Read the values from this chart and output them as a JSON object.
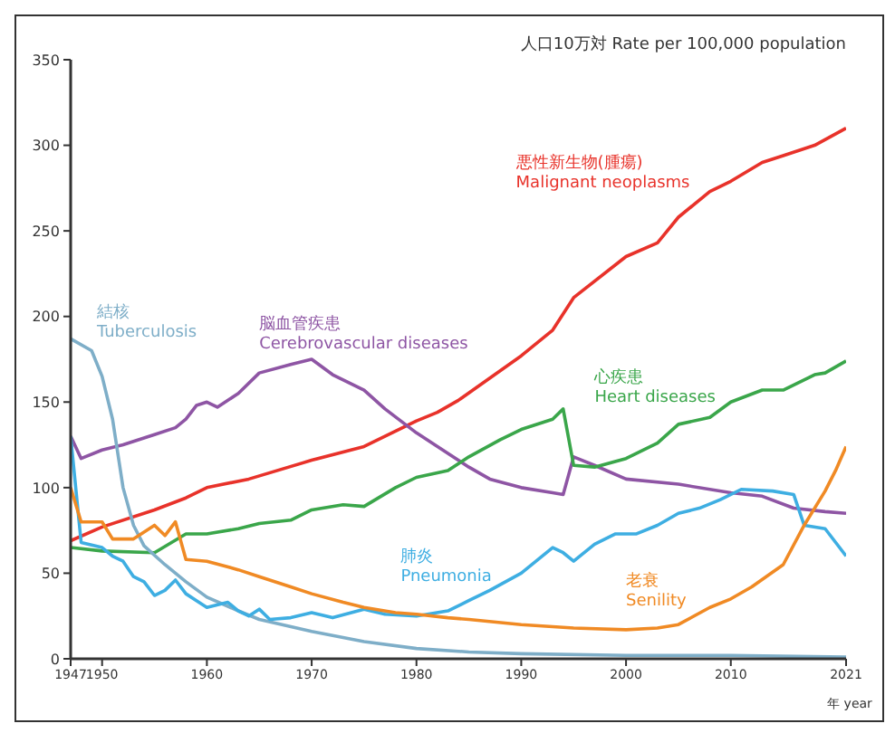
{
  "chart_data": {
    "type": "line",
    "ylabel": "人口10万対  Rate per 100,000 population",
    "xlabel": "年 year",
    "xlim": [
      1947,
      2021
    ],
    "xticks": [
      1947,
      1950,
      1960,
      1970,
      1980,
      1990,
      2000,
      2010,
      2021
    ],
    "ylim": [
      0,
      350
    ],
    "yticks": [
      0,
      50,
      100,
      150,
      200,
      250,
      300,
      350
    ],
    "grid": false,
    "legend": false,
    "marker": "none",
    "line_style": "solid",
    "series": [
      {
        "name": "悪性新生物(腫瘍)\nMalignant neoplasms",
        "color": "#e8322a",
        "x": [
          1947,
          1950,
          1955,
          1958,
          1960,
          1964,
          1970,
          1975,
          1980,
          1982,
          1984,
          1990,
          1993,
          1995,
          2000,
          2003,
          2005,
          2008,
          2010,
          2013,
          2015,
          2018,
          2021
        ],
        "values": [
          69,
          77,
          87,
          94,
          100,
          105,
          116,
          124,
          139,
          144,
          151,
          177,
          192,
          211,
          235,
          243,
          258,
          273,
          279,
          290,
          294,
          300,
          310
        ]
      },
      {
        "name": "脳血管疾患\nCerebrovascular diseases",
        "color": "#8e55a4",
        "x": [
          1947,
          1948,
          1950,
          1952,
          1955,
          1957,
          1958,
          1959,
          1960,
          1961,
          1963,
          1965,
          1968,
          1970,
          1972,
          1975,
          1977,
          1980,
          1983,
          1985,
          1987,
          1990,
          1993,
          1994,
          1995,
          1997,
          2000,
          2005,
          2010,
          2013,
          2016,
          2019,
          2021
        ],
        "values": [
          130,
          117,
          122,
          125,
          131,
          135,
          140,
          148,
          150,
          147,
          155,
          167,
          172,
          175,
          166,
          157,
          146,
          132,
          120,
          112,
          105,
          100,
          97,
          96,
          118,
          113,
          105,
          102,
          97,
          95,
          88,
          86,
          85
        ]
      },
      {
        "name": "心疾患\nHeart diseases",
        "color": "#3aa64a",
        "x": [
          1947,
          1950,
          1955,
          1958,
          1960,
          1963,
          1965,
          1968,
          1970,
          1973,
          1975,
          1978,
          1980,
          1983,
          1985,
          1988,
          1990,
          1993,
          1994,
          1995,
          1997,
          2000,
          2003,
          2005,
          2008,
          2010,
          2013,
          2015,
          2018,
          2019,
          2021
        ],
        "values": [
          65,
          63,
          62,
          73,
          73,
          76,
          79,
          81,
          87,
          90,
          89,
          100,
          106,
          110,
          118,
          128,
          134,
          140,
          146,
          113,
          112,
          117,
          126,
          137,
          141,
          150,
          157,
          157,
          166,
          167,
          174
        ]
      },
      {
        "name": "結核\nTuberculosis",
        "color": "#7eaec8",
        "x": [
          1947,
          1949,
          1950,
          1951,
          1952,
          1953,
          1954,
          1956,
          1958,
          1960,
          1963,
          1965,
          1970,
          1975,
          1980,
          1985,
          1990,
          2000,
          2010,
          2021
        ],
        "values": [
          187,
          180,
          165,
          140,
          100,
          78,
          66,
          55,
          45,
          36,
          28,
          23,
          16,
          10,
          6,
          4,
          3,
          2,
          2,
          1
        ]
      },
      {
        "name": "肺炎\nPneumonia",
        "color": "#3eaee2",
        "x": [
          1947,
          1948,
          1950,
          1951,
          1952,
          1953,
          1954,
          1955,
          1956,
          1957,
          1958,
          1959,
          1960,
          1962,
          1963,
          1964,
          1965,
          1966,
          1968,
          1970,
          1972,
          1975,
          1977,
          1980,
          1983,
          1985,
          1987,
          1990,
          1993,
          1994,
          1995,
          1997,
          1999,
          2001,
          2003,
          2005,
          2007,
          2009,
          2011,
          2014,
          2016,
          2017,
          2019,
          2021
        ],
        "values": [
          130,
          68,
          65,
          60,
          57,
          48,
          45,
          37,
          40,
          46,
          38,
          34,
          30,
          33,
          28,
          25,
          29,
          23,
          24,
          27,
          24,
          29,
          26,
          25,
          28,
          34,
          40,
          50,
          65,
          62,
          57,
          67,
          73,
          73,
          78,
          85,
          88,
          93,
          99,
          98,
          96,
          78,
          76,
          60
        ]
      },
      {
        "name": "老衰\nSenility",
        "color": "#f08a24",
        "x": [
          1947,
          1948,
          1950,
          1951,
          1953,
          1955,
          1956,
          1957,
          1958,
          1960,
          1963,
          1965,
          1968,
          1970,
          1973,
          1975,
          1978,
          1980,
          1983,
          1985,
          1990,
          1995,
          2000,
          2003,
          2005,
          2008,
          2010,
          2012,
          2015,
          2017,
          2019,
          2020,
          2021
        ],
        "values": [
          100,
          80,
          80,
          70,
          70,
          78,
          72,
          80,
          58,
          57,
          52,
          48,
          42,
          38,
          33,
          30,
          27,
          26,
          24,
          23,
          20,
          18,
          17,
          18,
          20,
          30,
          35,
          42,
          55,
          78,
          98,
          110,
          124
        ]
      }
    ]
  }
}
